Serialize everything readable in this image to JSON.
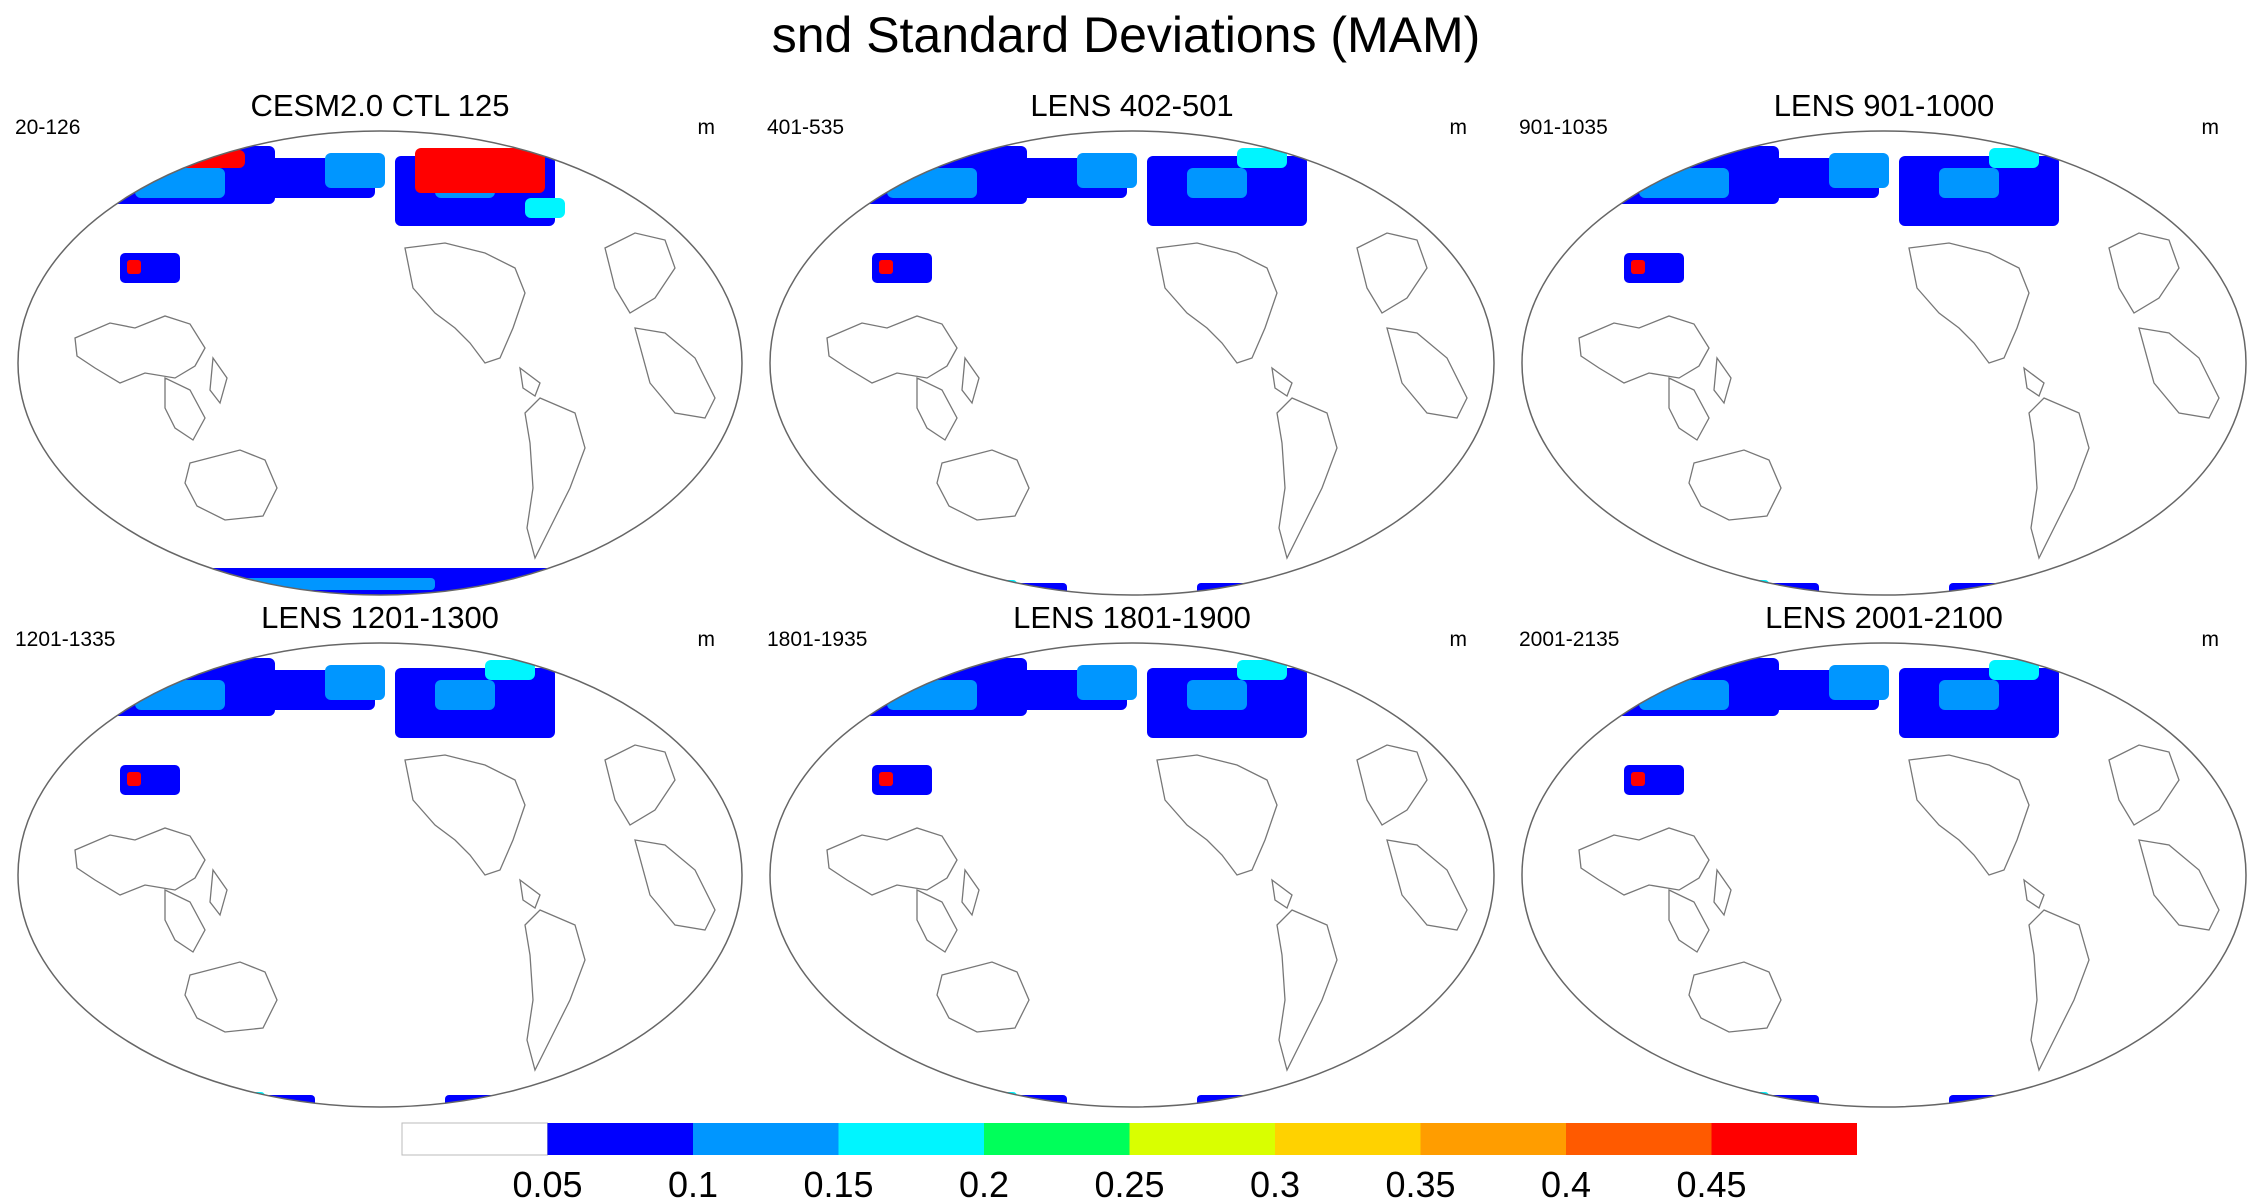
{
  "title": "snd Standard Deviations (MAM)",
  "panels": [
    {
      "title": "CESM2.0 CTL 125",
      "range": "20-126",
      "units": "m",
      "intensity": 3
    },
    {
      "title": "LENS 402-501",
      "range": "401-535",
      "units": "m",
      "intensity": 1
    },
    {
      "title": "LENS 901-1000",
      "range": "901-1035",
      "units": "m",
      "intensity": 1
    },
    {
      "title": "LENS 1201-1300",
      "range": "1201-1335",
      "units": "m",
      "intensity": 1
    },
    {
      "title": "LENS 1801-1900",
      "range": "1801-1935",
      "units": "m",
      "intensity": 1
    },
    {
      "title": "LENS 2001-2100",
      "range": "2001-2135",
      "units": "m",
      "intensity": 1
    }
  ],
  "colorbar": {
    "levels": [
      "0.05",
      "0.1",
      "0.15",
      "0.2",
      "0.25",
      "0.3",
      "0.35",
      "0.4",
      "0.45"
    ],
    "colors": [
      "#ffffff",
      "#0000ff",
      "#0096ff",
      "#00f5ff",
      "#00ff5a",
      "#d9ff00",
      "#ffd200",
      "#ff9d00",
      "#ff5a00",
      "#ff0000"
    ]
  }
}
